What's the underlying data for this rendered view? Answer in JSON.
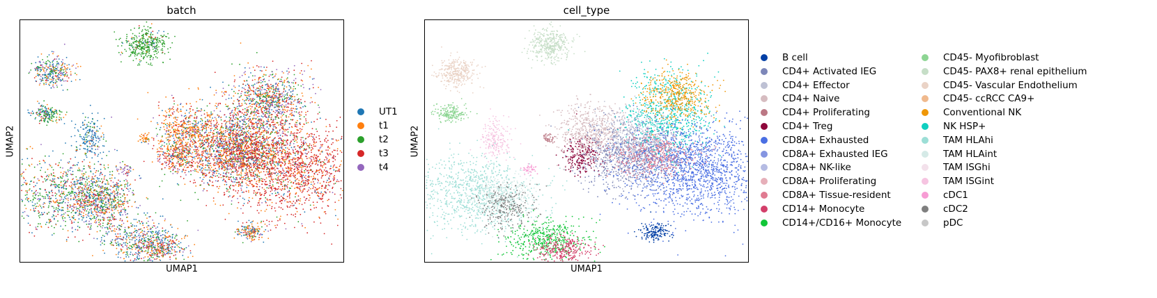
{
  "chart_data": [
    {
      "type": "scatter",
      "title": "batch",
      "xlabel": "UMAP1",
      "ylabel": "UMAP2",
      "grid": false,
      "ticks": "none",
      "legend_position": "right",
      "categories": [
        "UT1",
        "t1",
        "t2",
        "t3",
        "t4"
      ],
      "colors": [
        "#1f77b4",
        "#ff7f0e",
        "#2ca02c",
        "#d62728",
        "#9467bd"
      ]
    },
    {
      "type": "scatter",
      "title": "cell_type",
      "xlabel": "UMAP1",
      "ylabel": "UMAP2",
      "grid": false,
      "ticks": "none",
      "legend_position": "right",
      "categories": [
        "B cell",
        "CD4+ Activated IEG",
        "CD4+ Effector",
        "CD4+ Naive",
        "CD4+ Proliferating",
        "CD4+ Treg",
        "CD8A+ Exhausted",
        "CD8A+ Exhausted IEG",
        "CD8A+ NK-like",
        "CD8A+ Proliferating",
        "CD8A+ Tissue-resident",
        "CD14+ Monocyte",
        "CD14+/CD16+ Monocyte",
        "CD45- Myofibroblast",
        "CD45- PAX8+ renal epithelium",
        "CD45- Vascular Endothelium",
        "CD45- ccRCC CA9+",
        "Conventional NK",
        "NK HSP+",
        "TAM HLAhi",
        "TAM HLAint",
        "TAM ISGhi",
        "TAM ISGint",
        "cDC1",
        "cDC2",
        "pDC"
      ],
      "colors": [
        "#023fa5",
        "#7d87b9",
        "#bec1d4",
        "#d6bcc0",
        "#bb7784",
        "#8e063b",
        "#4a6fe3",
        "#8595e1",
        "#b5bbe3",
        "#e6afb9",
        "#e07b91",
        "#d33f6a",
        "#11c638",
        "#8dd593",
        "#c6dec7",
        "#ead3c6",
        "#f0b98d",
        "#ef9708",
        "#0fcfc0",
        "#9cded6",
        "#d5eae7",
        "#f3e1eb",
        "#f6c4e1",
        "#f79cd4",
        "#7f7f7f",
        "#c7c7c7"
      ]
    }
  ]
}
